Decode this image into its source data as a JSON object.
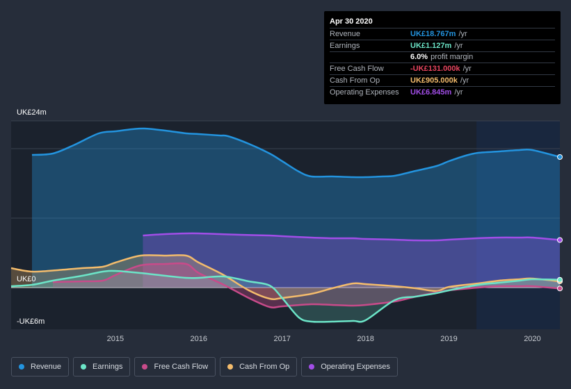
{
  "tooltip": {
    "date": "Apr 30 2020",
    "rows": [
      {
        "label": "Revenue",
        "value": "UK£18.767m",
        "unit": "/yr",
        "color": "#2394df"
      },
      {
        "label": "Earnings",
        "value": "UK£1.127m",
        "unit": "/yr",
        "color": "#6ce5c8"
      },
      {
        "label": "",
        "value": "6.0%",
        "unit": "profit margin",
        "color": "#ffffff"
      },
      {
        "label": "Free Cash Flow",
        "value": "-UK£131.000k",
        "unit": "/yr",
        "color": "#e8455f"
      },
      {
        "label": "Cash From Op",
        "value": "UK£905.000k",
        "unit": "/yr",
        "color": "#f4bc6c"
      },
      {
        "label": "Operating Expenses",
        "value": "UK£6.845m",
        "unit": "/yr",
        "color": "#a24ee8"
      }
    ]
  },
  "legend": [
    {
      "label": "Revenue",
      "color": "#2394df"
    },
    {
      "label": "Earnings",
      "color": "#6ce5c8"
    },
    {
      "label": "Free Cash Flow",
      "color": "#c84b8a"
    },
    {
      "label": "Cash From Op",
      "color": "#f4bc6c"
    },
    {
      "label": "Operating Expenses",
      "color": "#a24ee8"
    }
  ],
  "chart_data": {
    "type": "line",
    "title": "",
    "ylabel": "",
    "xlabel": "",
    "ylim": [
      -6,
      24
    ],
    "y_tick_labels": [
      {
        "value": 24,
        "label": "UK£24m"
      },
      {
        "value": 0,
        "label": "UK£0"
      },
      {
        "value": -6,
        "label": "-UK£6m"
      }
    ],
    "x_ticks": [
      {
        "value": 2015.0,
        "label": "2015"
      },
      {
        "value": 2016.0,
        "label": "2016"
      },
      {
        "value": 2017.0,
        "label": "2017"
      },
      {
        "value": 2018.0,
        "label": "2018"
      },
      {
        "value": 2019.0,
        "label": "2019"
      },
      {
        "value": 2020.0,
        "label": "2020"
      }
    ],
    "xlim": [
      2013.75,
      2020.33
    ],
    "forecast_start": 2019.33,
    "series": [
      {
        "name": "Revenue",
        "color": "#2394df",
        "fill": true,
        "x": [
          2014.0,
          2014.25,
          2014.5,
          2014.8,
          2015.0,
          2015.2,
          2015.35,
          2015.6,
          2015.85,
          2016.0,
          2016.25,
          2016.35,
          2016.6,
          2016.85,
          2017.0,
          2017.2,
          2017.35,
          2017.6,
          2017.85,
          2018.0,
          2018.2,
          2018.35,
          2018.6,
          2018.85,
          2019.0,
          2019.2,
          2019.35,
          2019.6,
          2019.85,
          2020.0,
          2020.33
        ],
        "values": [
          19.1,
          19.3,
          20.5,
          22.2,
          22.5,
          22.8,
          22.9,
          22.6,
          22.2,
          22.1,
          21.9,
          21.8,
          20.7,
          19.3,
          18.2,
          16.7,
          16.0,
          16.0,
          15.9,
          15.9,
          16.0,
          16.1,
          16.8,
          17.5,
          18.2,
          19.0,
          19.4,
          19.6,
          19.8,
          19.8,
          18.8
        ]
      },
      {
        "name": "Operating Expenses",
        "color": "#a24ee8",
        "fill": true,
        "x": [
          2015.33,
          2015.6,
          2015.85,
          2016.0,
          2016.25,
          2016.5,
          2016.85,
          2017.0,
          2017.35,
          2017.6,
          2017.85,
          2018.0,
          2018.35,
          2018.6,
          2018.85,
          2019.0,
          2019.33,
          2019.6,
          2019.85,
          2020.0,
          2020.33
        ],
        "values": [
          7.5,
          7.7,
          7.8,
          7.8,
          7.7,
          7.6,
          7.5,
          7.4,
          7.2,
          7.1,
          7.1,
          7.0,
          6.9,
          6.8,
          6.8,
          6.9,
          7.1,
          7.2,
          7.2,
          7.2,
          6.85
        ]
      },
      {
        "name": "Cash From Op",
        "color": "#f4bc6c",
        "fill": true,
        "x": [
          2013.75,
          2014.0,
          2014.3,
          2014.6,
          2014.85,
          2015.0,
          2015.3,
          2015.6,
          2015.85,
          2016.0,
          2016.3,
          2016.6,
          2016.85,
          2017.0,
          2017.35,
          2017.6,
          2017.85,
          2018.0,
          2018.35,
          2018.6,
          2018.85,
          2019.0,
          2019.35,
          2019.6,
          2019.85,
          2020.0,
          2020.33
        ],
        "values": [
          2.8,
          2.3,
          2.5,
          2.8,
          3.0,
          3.6,
          4.6,
          4.6,
          4.6,
          3.6,
          1.8,
          -0.4,
          -1.6,
          -1.5,
          -0.9,
          -0.1,
          0.6,
          0.5,
          0.2,
          -0.1,
          -0.5,
          0.1,
          0.6,
          1.0,
          1.2,
          1.3,
          0.905
        ]
      },
      {
        "name": "Free Cash Flow",
        "color": "#c84b8a",
        "fill": true,
        "x": [
          2014.25,
          2014.6,
          2014.85,
          2015.0,
          2015.3,
          2015.6,
          2015.85,
          2016.0,
          2016.3,
          2016.6,
          2016.85,
          2017.0,
          2017.35,
          2017.6,
          2017.85,
          2018.0,
          2018.35,
          2018.6,
          2018.85,
          2019.0,
          2019.35,
          2019.6,
          2019.85,
          2020.0,
          2020.33
        ],
        "values": [
          0.8,
          0.9,
          1.0,
          1.8,
          3.2,
          3.4,
          3.4,
          2.1,
          0.4,
          -1.5,
          -2.8,
          -2.7,
          -2.4,
          -2.5,
          -2.6,
          -2.5,
          -2.0,
          -1.3,
          -0.7,
          -0.4,
          0.0,
          0.2,
          0.2,
          0.2,
          -0.131
        ]
      },
      {
        "name": "Earnings",
        "color": "#6ce5c8",
        "fill": true,
        "x": [
          2013.75,
          2014.0,
          2014.25,
          2014.6,
          2014.85,
          2015.0,
          2015.3,
          2015.6,
          2015.85,
          2016.0,
          2016.3,
          2016.6,
          2016.85,
          2017.0,
          2017.2,
          2017.35,
          2017.6,
          2017.85,
          2018.0,
          2018.35,
          2018.6,
          2018.85,
          2019.0,
          2019.35,
          2019.6,
          2019.85,
          2020.0,
          2020.33
        ],
        "values": [
          0.2,
          0.4,
          1.0,
          1.7,
          2.3,
          2.4,
          2.1,
          1.7,
          1.4,
          1.4,
          1.6,
          0.9,
          0.3,
          -1.5,
          -4.3,
          -4.9,
          -4.9,
          -4.8,
          -4.7,
          -1.8,
          -1.3,
          -0.8,
          -0.4,
          0.4,
          0.7,
          1.0,
          1.2,
          1.127
        ]
      }
    ]
  }
}
